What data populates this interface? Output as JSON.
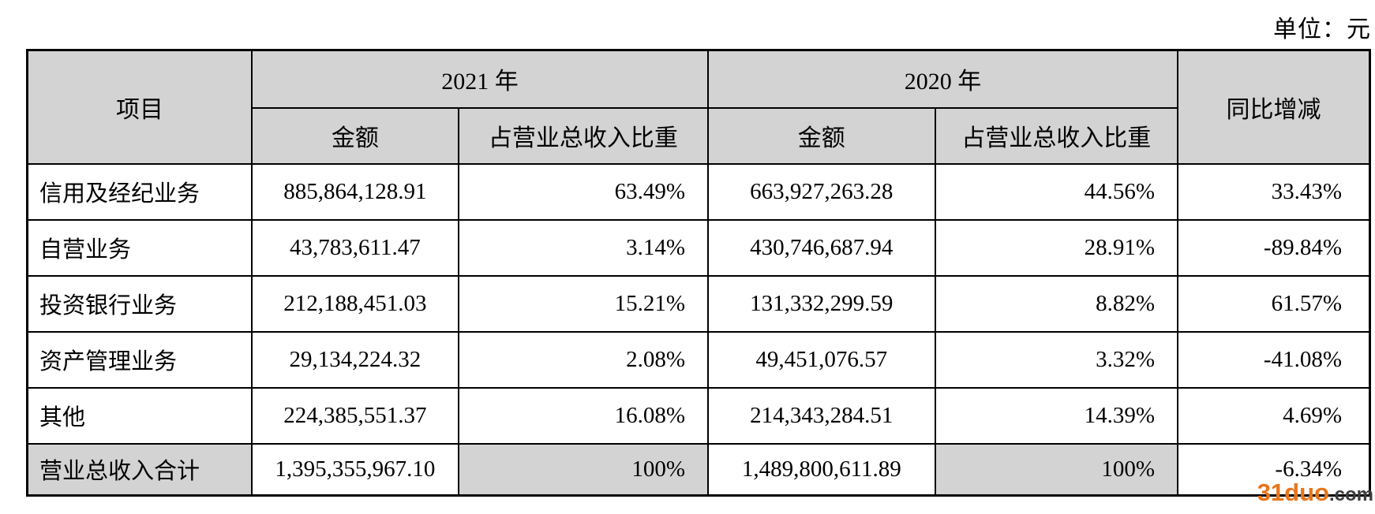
{
  "unit_label": "单位：元",
  "table": {
    "header": {
      "item": "项目",
      "year_2021": "2021 年",
      "year_2020": "2020 年",
      "amount_2021": "金额",
      "share_2021": "占营业总收入比重",
      "amount_2020": "金额",
      "share_2020": "占营业总收入比重",
      "yoy": "同比增减"
    },
    "rows": [
      {
        "item": "信用及经纪业务",
        "amount_2021": "885,864,128.91",
        "share_2021": "63.49%",
        "amount_2020": "663,927,263.28",
        "share_2020": "44.56%",
        "yoy": "33.43%"
      },
      {
        "item": "自营业务",
        "amount_2021": "43,783,611.47",
        "share_2021": "3.14%",
        "amount_2020": "430,746,687.94",
        "share_2020": "28.91%",
        "yoy": "-89.84%"
      },
      {
        "item": "投资银行业务",
        "amount_2021": "212,188,451.03",
        "share_2021": "15.21%",
        "amount_2020": "131,332,299.59",
        "share_2020": "8.82%",
        "yoy": "61.57%"
      },
      {
        "item": "资产管理业务",
        "amount_2021": "29,134,224.32",
        "share_2021": "2.08%",
        "amount_2020": "49,451,076.57",
        "share_2020": "3.32%",
        "yoy": "-41.08%"
      },
      {
        "item": "其他",
        "amount_2021": "224,385,551.37",
        "share_2021": "16.08%",
        "amount_2020": "214,343,284.51",
        "share_2020": "14.39%",
        "yoy": "4.69%"
      }
    ],
    "total_row": {
      "item": "营业总收入合计",
      "amount_2021": "1,395,355,967.10",
      "share_2021": "100%",
      "amount_2020": "1,489,800,611.89",
      "share_2020": "100%",
      "yoy": "-6.34%"
    }
  },
  "watermark": {
    "brand": "31duo",
    "suffix": ".com"
  },
  "colors": {
    "header_bg": "#d3d3d3",
    "border": "#000000",
    "watermark_orange": "#e8751a",
    "watermark_gray": "#3d3d3d"
  }
}
